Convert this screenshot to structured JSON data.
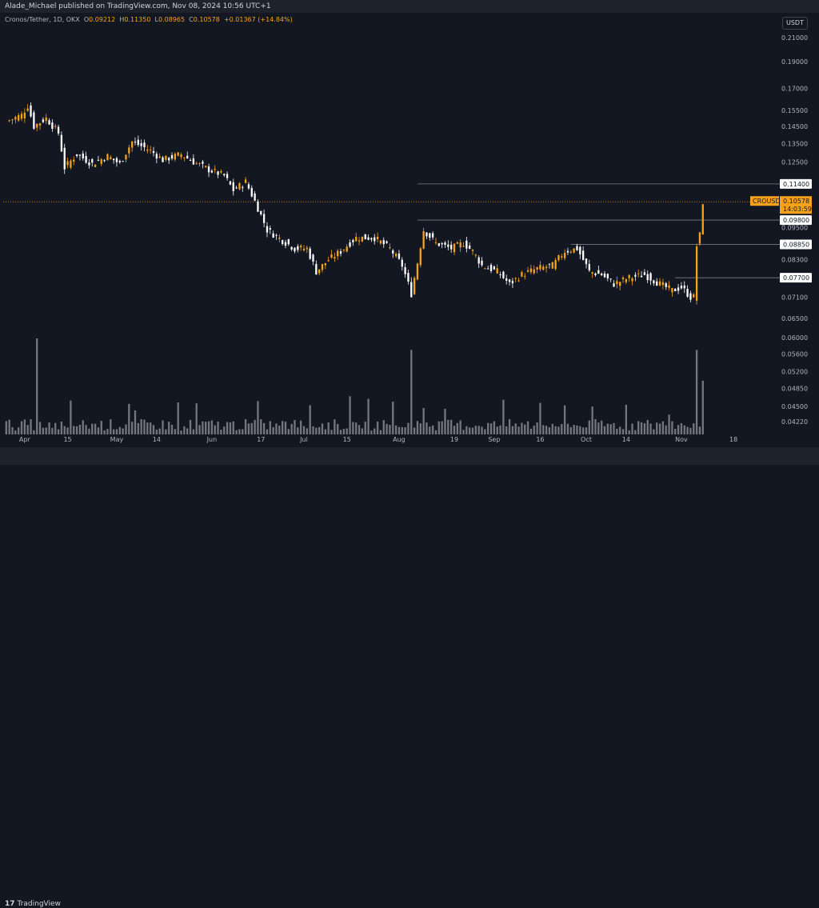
{
  "header": {
    "published": "Alade_Michael published on TradingView.com, Nov 08, 2024 10:56 UTC+1"
  },
  "ohlc": {
    "symbol": "Cronos/Tether, 1D, OKX",
    "o_label": "O",
    "o": "0.09212",
    "h_label": "H",
    "h": "0.11350",
    "l_label": "L",
    "l": "0.08965",
    "c_label": "C",
    "c": "0.10578",
    "change": "+0.01367 (+14.84%)"
  },
  "currency_button": "USDT",
  "footer": {
    "logo_text": "TradingView",
    "logo_mark": "17"
  },
  "colors": {
    "background": "#131722",
    "up": "#f7a21b",
    "down": "#ffffff",
    "volume": "#9598a1",
    "grid_line": "#787b86",
    "price_line": "#f7a21b"
  },
  "chart_data": {
    "type": "candlestick",
    "symbol": "CROUSDT",
    "title": "Cronos/Tether, 1D, OKX",
    "y_scale": "log",
    "ylim": [
      0.04,
      0.23
    ],
    "y_ticks": [
      "0.21000",
      "0.19000",
      "0.17000",
      "0.15500",
      "0.14500",
      "0.13500",
      "0.12500",
      "0.09500",
      "0.08300",
      "0.07100",
      "0.06500",
      "0.06000",
      "0.05600",
      "0.05200",
      "0.04850",
      "0.04500",
      "0.04220"
    ],
    "x_ticks": [
      "Apr",
      "15",
      "May",
      "14",
      "Jun",
      "17",
      "Jul",
      "15",
      "Aug",
      "19",
      "Sep",
      "16",
      "Oct",
      "14",
      "Nov",
      "18"
    ],
    "x_range": [
      "2024-03-25",
      "2024-11-25"
    ],
    "legend": "none",
    "grid": false,
    "key_levels": [
      {
        "value": 0.114,
        "label": "0.11400",
        "from": "2024-08-07"
      },
      {
        "value": 0.098,
        "label": "0.09800",
        "from": "2024-08-07"
      },
      {
        "value": 0.0885,
        "label": "0.08850",
        "from": "2024-09-26"
      },
      {
        "value": 0.077,
        "label": "0.07700",
        "from": "2024-10-30"
      }
    ],
    "current_price": {
      "label": "CROUSDT",
      "value": "0.10578",
      "countdown": "14:03:59"
    },
    "price_points": [
      [
        "2024-03-26",
        0.148
      ],
      [
        "2024-03-31",
        0.152
      ],
      [
        "2024-04-02",
        0.158
      ],
      [
        "2024-04-04",
        0.145
      ],
      [
        "2024-04-08",
        0.15
      ],
      [
        "2024-04-12",
        0.141
      ],
      [
        "2024-04-14",
        0.122
      ],
      [
        "2024-04-18",
        0.129
      ],
      [
        "2024-04-23",
        0.124
      ],
      [
        "2024-04-28",
        0.128
      ],
      [
        "2024-05-02",
        0.124
      ],
      [
        "2024-05-06",
        0.136
      ],
      [
        "2024-05-12",
        0.131
      ],
      [
        "2024-05-16",
        0.126
      ],
      [
        "2024-05-22",
        0.129
      ],
      [
        "2024-05-26",
        0.125
      ],
      [
        "2024-05-31",
        0.121
      ],
      [
        "2024-06-05",
        0.118
      ],
      [
        "2024-06-08",
        0.111
      ],
      [
        "2024-06-12",
        0.115
      ],
      [
        "2024-06-15",
        0.106
      ],
      [
        "2024-06-19",
        0.094
      ],
      [
        "2024-06-24",
        0.09
      ],
      [
        "2024-06-28",
        0.087
      ],
      [
        "2024-07-02",
        0.087
      ],
      [
        "2024-07-05",
        0.079
      ],
      [
        "2024-07-09",
        0.083
      ],
      [
        "2024-07-13",
        0.086
      ],
      [
        "2024-07-18",
        0.091
      ],
      [
        "2024-07-24",
        0.091
      ],
      [
        "2024-07-29",
        0.087
      ],
      [
        "2024-08-02",
        0.081
      ],
      [
        "2024-08-05",
        0.072
      ],
      [
        "2024-08-07",
        0.082
      ],
      [
        "2024-08-09",
        0.094
      ],
      [
        "2024-08-13",
        0.089
      ],
      [
        "2024-08-18",
        0.087
      ],
      [
        "2024-08-22",
        0.089
      ],
      [
        "2024-08-25",
        0.086
      ],
      [
        "2024-08-28",
        0.081
      ],
      [
        "2024-09-02",
        0.079
      ],
      [
        "2024-09-06",
        0.075
      ],
      [
        "2024-09-10",
        0.078
      ],
      [
        "2024-09-15",
        0.08
      ],
      [
        "2024-09-20",
        0.081
      ],
      [
        "2024-09-24",
        0.086
      ],
      [
        "2024-09-28",
        0.087
      ],
      [
        "2024-10-02",
        0.079
      ],
      [
        "2024-10-06",
        0.078
      ],
      [
        "2024-10-10",
        0.075
      ],
      [
        "2024-10-15",
        0.077
      ],
      [
        "2024-10-20",
        0.078
      ],
      [
        "2024-10-25",
        0.075
      ],
      [
        "2024-10-29",
        0.073
      ],
      [
        "2024-11-01",
        0.074
      ],
      [
        "2024-11-04",
        0.071
      ],
      [
        "2024-11-05",
        0.071
      ],
      [
        "2024-11-06",
        0.088
      ],
      [
        "2024-11-07",
        0.092
      ],
      [
        "2024-11-08",
        0.10578
      ]
    ],
    "volume_spikes": [
      {
        "date": "2024-04-05",
        "value": 1.0
      },
      {
        "date": "2024-08-05",
        "value": 0.88
      },
      {
        "date": "2024-11-06",
        "value": 0.88
      },
      {
        "date": "2024-11-08",
        "value": 0.56
      }
    ]
  }
}
